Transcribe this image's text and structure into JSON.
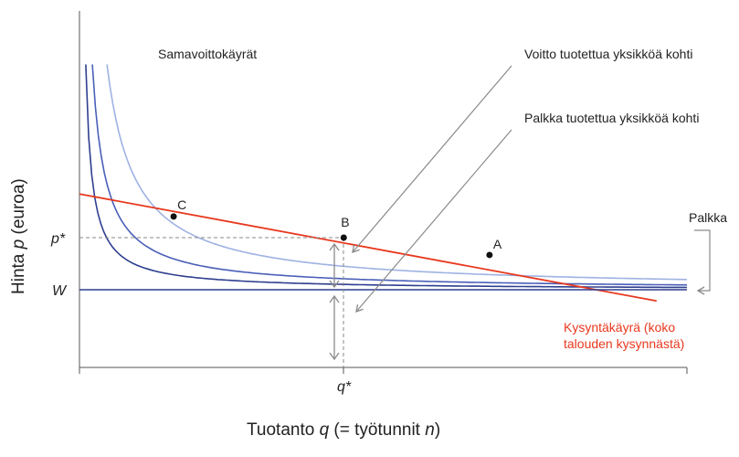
{
  "chart_data": {
    "type": "line",
    "title": "",
    "xlabel": "Tuotanto q (= työtunnit n)",
    "ylabel": "Hinta p (euroa)",
    "ylabel_parts": [
      "Hinta ",
      "p",
      " (euroa)"
    ],
    "xlabel_parts": [
      "Tuotanto ",
      "q",
      " (= työtunnit ",
      "n",
      ")"
    ],
    "x_tick_labels": [
      "q*"
    ],
    "y_tick_labels": [
      "p*",
      "W"
    ],
    "isoprofit_label": "Samavoittokäyrät",
    "annotations": {
      "profit_per_unit": "Voitto tuotettua yksikköä kohti",
      "wage_per_unit": "Palkka tuotettua yksikköä kohti",
      "wage": "Palkka",
      "demand": [
        "Kysyntäkäyrä (koko",
        "talouden kysynnästä)"
      ]
    },
    "points": [
      {
        "name": "C",
        "x": 0.155,
        "y": 0.52
      },
      {
        "name": "B",
        "x": 0.435,
        "y": 0.37
      },
      {
        "name": "A",
        "x": 0.675,
        "y": 0.247
      }
    ],
    "series": [
      {
        "name": "",
        "kind": "isoprofit",
        "level": 1,
        "color": "#2e3f8f",
        "asymptote_y": 0.0,
        "k": 0.0165
      },
      {
        "name": "",
        "kind": "isoprofit",
        "level": 2,
        "color": "#4a5fb8",
        "asymptote_y": 0.0,
        "k": 0.034
      },
      {
        "name": "",
        "kind": "isoprofit",
        "level": 3,
        "color": "#9fb2e3",
        "asymptote_y": 0.0,
        "k": 0.0725
      },
      {
        "name": "",
        "kind": "demand",
        "color": "#e8381e",
        "x": [
          0.0,
          0.95
        ],
        "y": [
          0.68,
          -0.08
        ]
      },
      {
        "name": "",
        "kind": "wage",
        "color": "#2e3f8f",
        "x": [
          0.0,
          1.0
        ],
        "y": [
          0.0,
          0.0
        ]
      }
    ],
    "xlim": [
      0,
      1
    ],
    "ylim": [
      -0.25,
      1.0
    ],
    "grid": false,
    "colors": {
      "demand": "#e8381e",
      "wage_line": "#2e3f8f",
      "annotation": "#8a8a8a",
      "axis": "#555555"
    }
  }
}
